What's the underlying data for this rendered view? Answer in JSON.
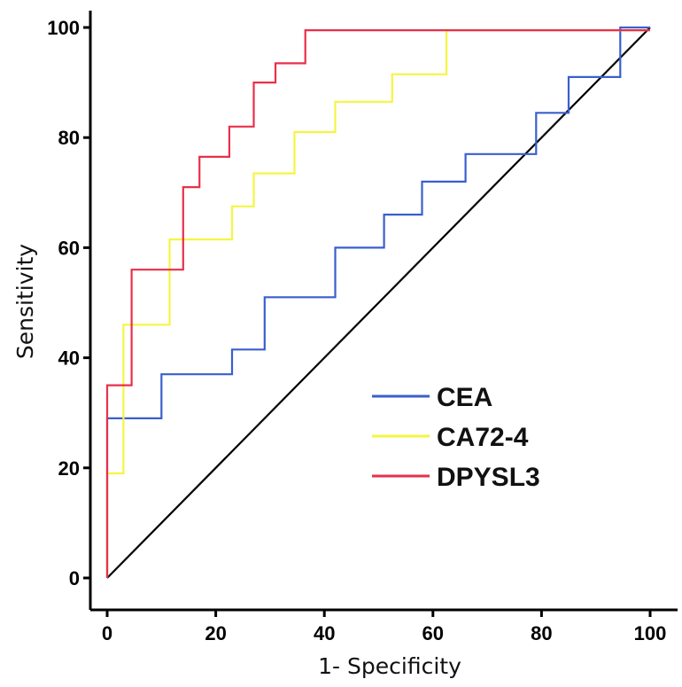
{
  "chart_data": {
    "type": "line",
    "title": "",
    "xlabel": "1- Specificity",
    "ylabel": "Sensitivity",
    "xlim": [
      0,
      100
    ],
    "ylim": [
      0,
      100
    ],
    "x_ticks": [
      "0",
      "20",
      "40",
      "60",
      "80",
      "100"
    ],
    "y_ticks": [
      "0",
      "20",
      "40",
      "60",
      "80",
      "100"
    ],
    "legend_position": "bottom-right",
    "grid": false,
    "reference_line": {
      "x": [
        0,
        100
      ],
      "y": [
        0,
        100
      ],
      "color": "#000000"
    },
    "series": [
      {
        "name": "CEA",
        "color": "#3a5fcd",
        "x": [
          0,
          0,
          10,
          10,
          23,
          23,
          29,
          29,
          42,
          42,
          51,
          51,
          58,
          58,
          66,
          66,
          79,
          79,
          85,
          85,
          94.5,
          94.5,
          100
        ],
        "y": [
          0,
          29,
          29,
          37,
          37,
          41.5,
          41.5,
          51,
          51,
          60,
          60,
          66,
          66,
          72,
          72,
          77,
          77,
          84.5,
          84.5,
          91,
          91,
          100,
          100
        ]
      },
      {
        "name": "CA72-4",
        "color": "#f5f542",
        "x": [
          0,
          0,
          3,
          3,
          11.5,
          11.5,
          23,
          23,
          27,
          27,
          34.5,
          34.5,
          42,
          42,
          52.5,
          52.5,
          62.5,
          62.5,
          100
        ],
        "y": [
          0,
          19,
          19,
          46,
          46,
          61.5,
          61.5,
          67.5,
          67.5,
          73.5,
          73.5,
          81,
          81,
          86.5,
          86.5,
          91.5,
          91.5,
          99.5,
          99.5
        ]
      },
      {
        "name": "DPYSL3",
        "color": "#e8304a",
        "x": [
          0,
          0,
          4.5,
          4.5,
          14,
          14,
          17,
          17,
          22.5,
          22.5,
          27,
          27,
          31,
          31,
          36.5,
          36.5,
          100
        ],
        "y": [
          0,
          35,
          35,
          56,
          56,
          71,
          71,
          76.5,
          76.5,
          82,
          82,
          90,
          90,
          93.5,
          93.5,
          99.5,
          99.5
        ]
      }
    ]
  }
}
